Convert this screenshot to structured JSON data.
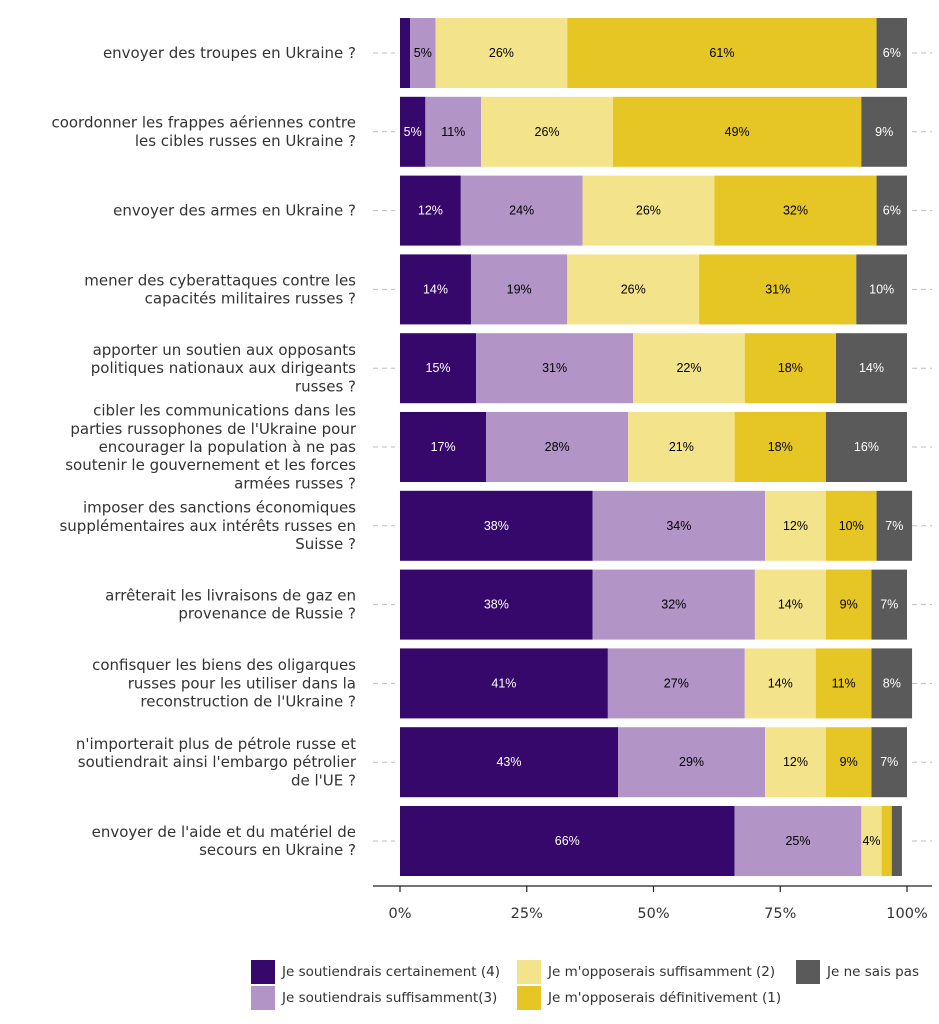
{
  "chart_data": {
    "type": "bar",
    "orientation": "horizontal",
    "stacked": "percent",
    "categories": [
      "envoyer des troupes en Ukraine ?",
      "coordonner les frappes aériennes contre les cibles russes en Ukraine ?",
      "envoyer des armes en Ukraine ?",
      "mener des cyberattaques contre les capacités militaires russes ?",
      "apporter un soutien aux opposants politiques nationaux aux dirigeants russes ?",
      "cibler les communications dans les parties russophones de l'Ukraine pour encourager la population à ne pas soutenir le gouvernement et les forces armées russes ?",
      "imposer des sanctions économiques supplémentaires aux intérêts russes en Suisse ?",
      "arrêterait les livraisons de gaz en provenance de Russie ?",
      "confisquer les biens des oligarques russes pour les utiliser dans la reconstruction de l'Ukraine ?",
      "n'importerait plus de pétrole russe et soutiendrait ainsi l'embargo pétrolier de l'UE ?",
      "envoyer de l'aide et du matériel de secours en Ukraine ?"
    ],
    "category_lines": [
      [
        "envoyer des troupes en Ukraine ?"
      ],
      [
        "coordonner les frappes aériennes contre",
        "les cibles russes en Ukraine ?"
      ],
      [
        "envoyer des armes en Ukraine ?"
      ],
      [
        "mener des cyberattaques contre les",
        "capacités militaires russes ?"
      ],
      [
        "apporter un soutien aux opposants",
        "politiques nationaux aux dirigeants",
        "russes ?"
      ],
      [
        "cibler les communications dans les",
        "parties russophones de l'Ukraine pour",
        "encourager la population à ne pas",
        "soutenir le gouvernement et les forces",
        "armées russes ?"
      ],
      [
        "imposer des sanctions économiques",
        "supplémentaires aux intérêts russes en",
        "Suisse ?"
      ],
      [
        "arrêterait les livraisons de gaz en",
        "provenance de Russie ?"
      ],
      [
        "confisquer les biens des oligarques",
        "russes pour les utiliser dans la",
        "reconstruction de l'Ukraine ?"
      ],
      [
        "n'importerait plus de pétrole russe et",
        "soutiendrait ainsi l'embargo pétrolier",
        "de l'UE ?"
      ],
      [
        "envoyer de l'aide et du matériel de",
        "secours en Ukraine ?"
      ]
    ],
    "series": [
      {
        "name": "Je soutiendrais certainement (4)",
        "color": "#36086b",
        "label_color": "#ffffff",
        "values": [
          2,
          5,
          12,
          14,
          15,
          17,
          38,
          38,
          41,
          43,
          66
        ],
        "labels": [
          "",
          "5%",
          "12%",
          "14%",
          "15%",
          "17%",
          "38%",
          "38%",
          "41%",
          "43%",
          "66%"
        ]
      },
      {
        "name": "Je soutiendrais suffisamment(3)",
        "color": "#b294c7",
        "label_color": "#000000",
        "values": [
          5,
          11,
          24,
          19,
          31,
          28,
          34,
          32,
          27,
          29,
          25
        ],
        "labels": [
          "5%",
          "11%",
          "24%",
          "19%",
          "31%",
          "28%",
          "34%",
          "32%",
          "27%",
          "29%",
          "25%"
        ]
      },
      {
        "name": "Je m'opposerais suffisamment (2)",
        "color": "#f3e48b",
        "label_color": "#000000",
        "values": [
          26,
          26,
          26,
          26,
          22,
          21,
          12,
          14,
          14,
          12,
          4
        ],
        "labels": [
          "26%",
          "26%",
          "26%",
          "26%",
          "22%",
          "21%",
          "12%",
          "14%",
          "14%",
          "12%",
          "4%"
        ]
      },
      {
        "name": "Je m'opposerais définitivement (1)",
        "color": "#e6c624",
        "label_color": "#000000",
        "values": [
          61,
          49,
          32,
          31,
          18,
          18,
          10,
          9,
          11,
          9,
          2
        ],
        "labels": [
          "61%",
          "49%",
          "32%",
          "31%",
          "18%",
          "18%",
          "10%",
          "9%",
          "11%",
          "9%",
          ""
        ]
      },
      {
        "name": "Je ne sais pas",
        "color": "#5a5a5a",
        "label_color": "#ffffff",
        "values": [
          6,
          9,
          6,
          10,
          14,
          16,
          7,
          7,
          8,
          7,
          2
        ],
        "labels": [
          "6%",
          "9%",
          "6%",
          "10%",
          "14%",
          "16%",
          "7%",
          "7%",
          "8%",
          "7%",
          ""
        ]
      }
    ],
    "xlim": [
      0,
      100
    ],
    "xticks": [
      0,
      25,
      50,
      75,
      100
    ],
    "xtick_labels": [
      "0%",
      "25%",
      "50%",
      "75%",
      "100%"
    ],
    "xlabel": "",
    "ylabel": "",
    "title": "",
    "grid": false,
    "legend_position": "bottom-right"
  }
}
